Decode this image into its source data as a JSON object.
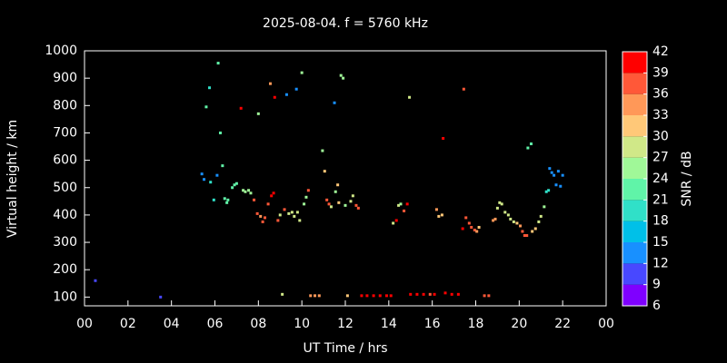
{
  "chart_data": {
    "type": "scatter",
    "title": "2025-08-04. f = 5760 kHz",
    "x_label": "UT Time / hrs",
    "y_label": "Virtual height / km",
    "xlim": [
      0,
      24
    ],
    "xticks": [
      {
        "value": 0,
        "label": "00"
      },
      {
        "value": 2,
        "label": "02"
      },
      {
        "value": 4,
        "label": "04"
      },
      {
        "value": 6,
        "label": "06"
      },
      {
        "value": 8,
        "label": "08"
      },
      10,
      12,
      14,
      16,
      18,
      20,
      22,
      {
        "value": 24,
        "label": "00"
      }
    ],
    "ylim": [
      68,
      1000
    ],
    "yticks": [
      100,
      200,
      300,
      400,
      500,
      600,
      700,
      800,
      900,
      1000
    ],
    "colorbar": {
      "label": "SNR / dB",
      "lim": [
        6,
        42
      ],
      "ticks": [
        6,
        9,
        12,
        15,
        18,
        21,
        24,
        27,
        30,
        33,
        36,
        39,
        42
      ],
      "colors": [
        "#7f00ff",
        "#4848ff",
        "#1890ff",
        "#00c0e8",
        "#30e0c8",
        "#60f4a8",
        "#a0f898",
        "#d0e888",
        "#ffc878",
        "#ff9858",
        "#ff5838",
        "#ff0000"
      ]
    },
    "x": [
      0.5,
      3.5,
      5.4,
      5.5,
      5.6,
      5.75,
      5.8,
      5.95,
      6.1,
      6.15,
      6.25,
      6.35,
      6.45,
      6.55,
      6.6,
      6.8,
      6.9,
      7.0,
      7.2,
      7.3,
      7.4,
      7.55,
      7.65,
      7.8,
      7.95,
      8.0,
      8.1,
      8.2,
      8.3,
      8.45,
      8.55,
      8.6,
      8.7,
      8.75,
      8.9,
      9.0,
      9.1,
      9.2,
      9.3,
      9.4,
      9.55,
      9.65,
      9.75,
      9.8,
      9.9,
      10.0,
      10.1,
      10.2,
      10.3,
      10.4,
      10.6,
      10.8,
      10.95,
      11.05,
      11.15,
      11.25,
      11.35,
      11.5,
      11.55,
      11.65,
      11.7,
      11.8,
      11.9,
      12.0,
      12.1,
      12.25,
      12.35,
      12.5,
      12.6,
      12.75,
      13.0,
      13.3,
      13.6,
      13.9,
      14.1,
      14.2,
      14.35,
      14.45,
      14.55,
      14.7,
      14.85,
      14.95,
      15.0,
      15.3,
      15.6,
      15.9,
      16.1,
      16.2,
      16.3,
      16.45,
      16.5,
      16.6,
      16.9,
      17.2,
      17.4,
      17.45,
      17.55,
      17.7,
      17.8,
      17.95,
      18.05,
      18.15,
      18.4,
      18.6,
      18.8,
      18.9,
      19.0,
      19.1,
      19.2,
      19.35,
      19.5,
      19.6,
      19.75,
      19.9,
      20.05,
      20.15,
      20.25,
      20.35,
      20.4,
      20.55,
      20.6,
      20.75,
      20.9,
      21.0,
      21.15,
      21.25,
      21.35,
      21.4,
      21.5,
      21.6,
      21.7,
      21.8,
      21.9,
      22.0
    ],
    "values": [
      160,
      100,
      550,
      530,
      795,
      865,
      520,
      455,
      545,
      955,
      700,
      580,
      460,
      445,
      455,
      500,
      510,
      515,
      790,
      490,
      485,
      490,
      480,
      455,
      405,
      770,
      395,
      375,
      390,
      440,
      880,
      470,
      480,
      830,
      380,
      400,
      110,
      420,
      840,
      405,
      410,
      395,
      860,
      410,
      380,
      920,
      440,
      465,
      490,
      105,
      105,
      105,
      635,
      560,
      455,
      440,
      430,
      810,
      485,
      510,
      445,
      910,
      900,
      435,
      105,
      450,
      470,
      435,
      425,
      105,
      105,
      105,
      105,
      105,
      105,
      370,
      380,
      435,
      440,
      415,
      440,
      830,
      110,
      110,
      110,
      110,
      110,
      420,
      395,
      400,
      680,
      115,
      110,
      110,
      350,
      860,
      390,
      370,
      355,
      345,
      340,
      355,
      105,
      105,
      380,
      385,
      425,
      445,
      440,
      410,
      400,
      385,
      375,
      370,
      360,
      340,
      325,
      325,
      645,
      660,
      340,
      350,
      375,
      395,
      430,
      485,
      490,
      570,
      555,
      545,
      510,
      560,
      505,
      545
    ],
    "snr": [
      9,
      9,
      12,
      12,
      21,
      18,
      18,
      18,
      12,
      21,
      21,
      21,
      21,
      21,
      21,
      21,
      21,
      21,
      39,
      24,
      24,
      24,
      24,
      36,
      36,
      24,
      33,
      36,
      36,
      36,
      33,
      39,
      39,
      39,
      36,
      27,
      27,
      36,
      12,
      27,
      27,
      27,
      12,
      27,
      27,
      24,
      24,
      24,
      36,
      33,
      33,
      33,
      24,
      30,
      36,
      36,
      27,
      12,
      24,
      30,
      30,
      24,
      24,
      24,
      30,
      27,
      27,
      36,
      36,
      39,
      39,
      39,
      39,
      39,
      39,
      27,
      39,
      27,
      24,
      36,
      39,
      27,
      39,
      39,
      39,
      36,
      39,
      33,
      30,
      30,
      39,
      39,
      39,
      39,
      39,
      36,
      36,
      36,
      36,
      36,
      33,
      30,
      36,
      36,
      33,
      33,
      27,
      27,
      27,
      27,
      27,
      27,
      27,
      30,
      33,
      36,
      36,
      36,
      21,
      21,
      30,
      30,
      27,
      27,
      24,
      18,
      18,
      12,
      12,
      12,
      12,
      12,
      12,
      12
    ]
  }
}
